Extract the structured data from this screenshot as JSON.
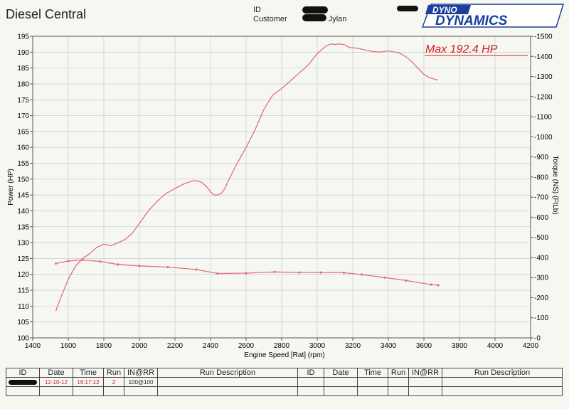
{
  "header": {
    "title": "Diesel Central",
    "id_label": "ID",
    "customer_label": "Customer",
    "customer_value": "Jylan"
  },
  "logo": {
    "line1": "DYNO",
    "line2": "DYNAMICS"
  },
  "colors": {
    "curve": "#e0707a",
    "grid": "#b8c4d8",
    "annotation": "#d02020",
    "logo_blue": "#1d3f9c"
  },
  "chart_data": {
    "type": "line",
    "annotation": "Max 192.4 HP",
    "xlabel": "Engine Speed [Rat] (rpm)",
    "ylabel": "Power (HP)",
    "y2label": "Torque (NS) (FtLb)",
    "xlim": [
      1400,
      4200
    ],
    "ylim": [
      100,
      195
    ],
    "y2lim": [
      0,
      1500
    ],
    "x_ticks": [
      "1400",
      "1600",
      "1800",
      "2000",
      "2200",
      "2400",
      "2600",
      "2800",
      "3000",
      "3200",
      "3400",
      "3600",
      "3800",
      "4000",
      "4200"
    ],
    "y_ticks": [
      "100",
      "105",
      "110",
      "115",
      "120",
      "125",
      "130",
      "135",
      "140",
      "145",
      "150",
      "155",
      "160",
      "165",
      "170",
      "175",
      "180",
      "185",
      "190",
      "195"
    ],
    "y2_ticks": [
      "0",
      "100",
      "200",
      "300",
      "400",
      "500",
      "600",
      "700",
      "800",
      "900",
      "1000",
      "1100",
      "1200",
      "1300",
      "1400",
      "1500"
    ],
    "grid": true,
    "series": [
      {
        "axis": "left",
        "x": [
          1530,
          1560,
          1600,
          1640,
          1680,
          1720,
          1760,
          1800,
          1840,
          1880,
          1920,
          1960,
          2000,
          2050,
          2100,
          2150,
          2200,
          2250,
          2300,
          2320,
          2350,
          2380,
          2400,
          2420,
          2440,
          2460,
          2480,
          2500,
          2550,
          2600,
          2650,
          2700,
          2750,
          2800,
          2850,
          2900,
          2950,
          3000,
          3050,
          3080,
          3100,
          3120,
          3150,
          3180,
          3200,
          3230,
          3260,
          3300,
          3350,
          3380,
          3400,
          3430,
          3460,
          3500,
          3530,
          3560,
          3600,
          3630,
          3660,
          3680
        ],
        "y": [
          108.5,
          113,
          118.5,
          122.5,
          125,
          126.5,
          128.5,
          129.5,
          129,
          130,
          131,
          133,
          136,
          140,
          143,
          145.5,
          147,
          148.5,
          149.5,
          149.5,
          149,
          147.5,
          146,
          145,
          145,
          145.5,
          147,
          149.5,
          155,
          160,
          165.5,
          172,
          176.5,
          178.5,
          181,
          183.5,
          186,
          189.5,
          192,
          192.6,
          192.4,
          192.6,
          192.4,
          191.5,
          191.4,
          191.2,
          190.8,
          190.3,
          190,
          190.2,
          190.4,
          190.1,
          189.8,
          188.5,
          187.1,
          185.3,
          183,
          182,
          181.5,
          181.2
        ]
      },
      {
        "axis": "right",
        "x": [
          1530,
          1600,
          1680,
          1780,
          1880,
          2000,
          2160,
          2320,
          2440,
          2600,
          2760,
          2900,
          3020,
          3150,
          3250,
          3380,
          3500,
          3640,
          3680
        ],
        "y": [
          370,
          382,
          388,
          380,
          365,
          358,
          352,
          340,
          320,
          322,
          328,
          325,
          325,
          324,
          315,
          300,
          285,
          265,
          262
        ]
      }
    ]
  },
  "run_table": {
    "headers": [
      "ID",
      "Date",
      "Time",
      "Run",
      "IN@RR",
      "Run Description",
      "ID",
      "Date",
      "Time",
      "Run",
      "IN@RR",
      "Run Description"
    ],
    "rows": [
      [
        "",
        "12-10-12",
        "16:17:12",
        "2",
        "100@100",
        "",
        "",
        "",
        "",
        "",
        "",
        ""
      ],
      [
        "",
        "",
        "",
        "",
        "",
        "",
        "",
        "",
        "",
        "",
        "",
        ""
      ]
    ]
  }
}
